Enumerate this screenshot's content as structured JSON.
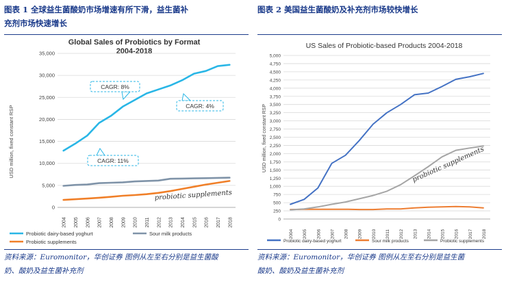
{
  "figure_left": {
    "caption_line1": "图表 1   全球益生菌酸奶市场增速有所下滑，益生菌补",
    "caption_line2": "充剂市场快速增长",
    "source_line1": "资料来源：Euromonitor，华创证券  图例从左至右分别是益生菌酸",
    "source_line2": "奶、酸奶及益生菌补充剂"
  },
  "figure_right": {
    "caption": "图表 2   美国益生菌酸奶及补充剂市场较快增长",
    "source_line1": "资料来源：Euromonitor，华创证券   图例从左至右分别是益生菌",
    "source_line2": "酸奶、酸奶及益生菌补充剂"
  },
  "chart_data": [
    {
      "type": "line",
      "title_line1": "Global Sales of Probiotics by Format",
      "title_line2": "2004-2018",
      "ylabel": "USD million, fixed constant RSP",
      "xlabel": "",
      "ylim": [
        0,
        35000
      ],
      "yticks": [
        "0",
        "5,000",
        "10,000",
        "15,000",
        "20,000",
        "25,000",
        "30,000",
        "35,000"
      ],
      "x": [
        "2004",
        "2005",
        "2006",
        "2007",
        "2008",
        "2009",
        "2010",
        "2011",
        "2012",
        "2013",
        "2014",
        "2015",
        "2016",
        "2017",
        "2018"
      ],
      "grid": true,
      "legend_position": "bottom",
      "series": [
        {
          "name": "Probiotic dairy-based yoghurt",
          "color": "#29b6e6",
          "values": [
            12900,
            14500,
            16300,
            19200,
            20800,
            22900,
            24400,
            25900,
            26800,
            27700,
            28900,
            30400,
            31000,
            32100,
            32400
          ]
        },
        {
          "name": "Sour milk products",
          "color": "#7f93a8",
          "values": [
            4900,
            5100,
            5200,
            5500,
            5600,
            5700,
            5900,
            6000,
            6100,
            6500,
            6550,
            6600,
            6650,
            6700,
            6750
          ]
        },
        {
          "name": "Probiotic supplements",
          "color": "#f07f28",
          "values": [
            1700,
            1850,
            2000,
            2200,
            2400,
            2650,
            2800,
            3000,
            3300,
            3700,
            4200,
            4700,
            5200,
            5600,
            6000
          ]
        }
      ],
      "annotations": [
        {
          "text": "CAGR: 8%"
        },
        {
          "text": "CAGR: 4%"
        },
        {
          "text": "CAGR: 11%"
        },
        {
          "text": "probiotic supplements"
        }
      ]
    },
    {
      "type": "line",
      "title": "US Sales of Probiotic-based Products 2004-2018",
      "ylabel": "USD million, fixed constant RSP",
      "xlabel": "",
      "ylim": [
        0,
        5000
      ],
      "yticks": [
        "0",
        "250",
        "500",
        "750",
        "1,000",
        "1,250",
        "1,500",
        "1,750",
        "2,000",
        "2,250",
        "2,500",
        "2,750",
        "3,000",
        "3,250",
        "3,500",
        "3,750",
        "4,000",
        "4,250",
        "4,500",
        "4,750",
        "5,000"
      ],
      "x": [
        "2004",
        "2005",
        "2006",
        "2007",
        "2008",
        "2009",
        "2010",
        "2011",
        "2012",
        "2013",
        "2014",
        "2015",
        "2016",
        "2017",
        "2018"
      ],
      "grid": true,
      "legend_position": "bottom",
      "series": [
        {
          "name": "Probiotic dairy-based yoghurt",
          "color": "#4472c4",
          "values": [
            450,
            600,
            950,
            1700,
            1950,
            2400,
            2900,
            3250,
            3500,
            3800,
            3850,
            4050,
            4270,
            4350,
            4450
          ]
        },
        {
          "name": "Sour milk products",
          "color": "#ed7d31",
          "values": [
            290,
            300,
            300,
            300,
            300,
            290,
            290,
            310,
            310,
            340,
            360,
            370,
            380,
            370,
            340
          ]
        },
        {
          "name": "Probiotic supplements",
          "color": "#a5a5a5",
          "values": [
            280,
            310,
            370,
            450,
            520,
            620,
            720,
            850,
            1050,
            1320,
            1600,
            1900,
            2100,
            2170,
            2230
          ]
        }
      ],
      "annotations": [
        {
          "text": "probiotic supplements"
        }
      ]
    }
  ]
}
